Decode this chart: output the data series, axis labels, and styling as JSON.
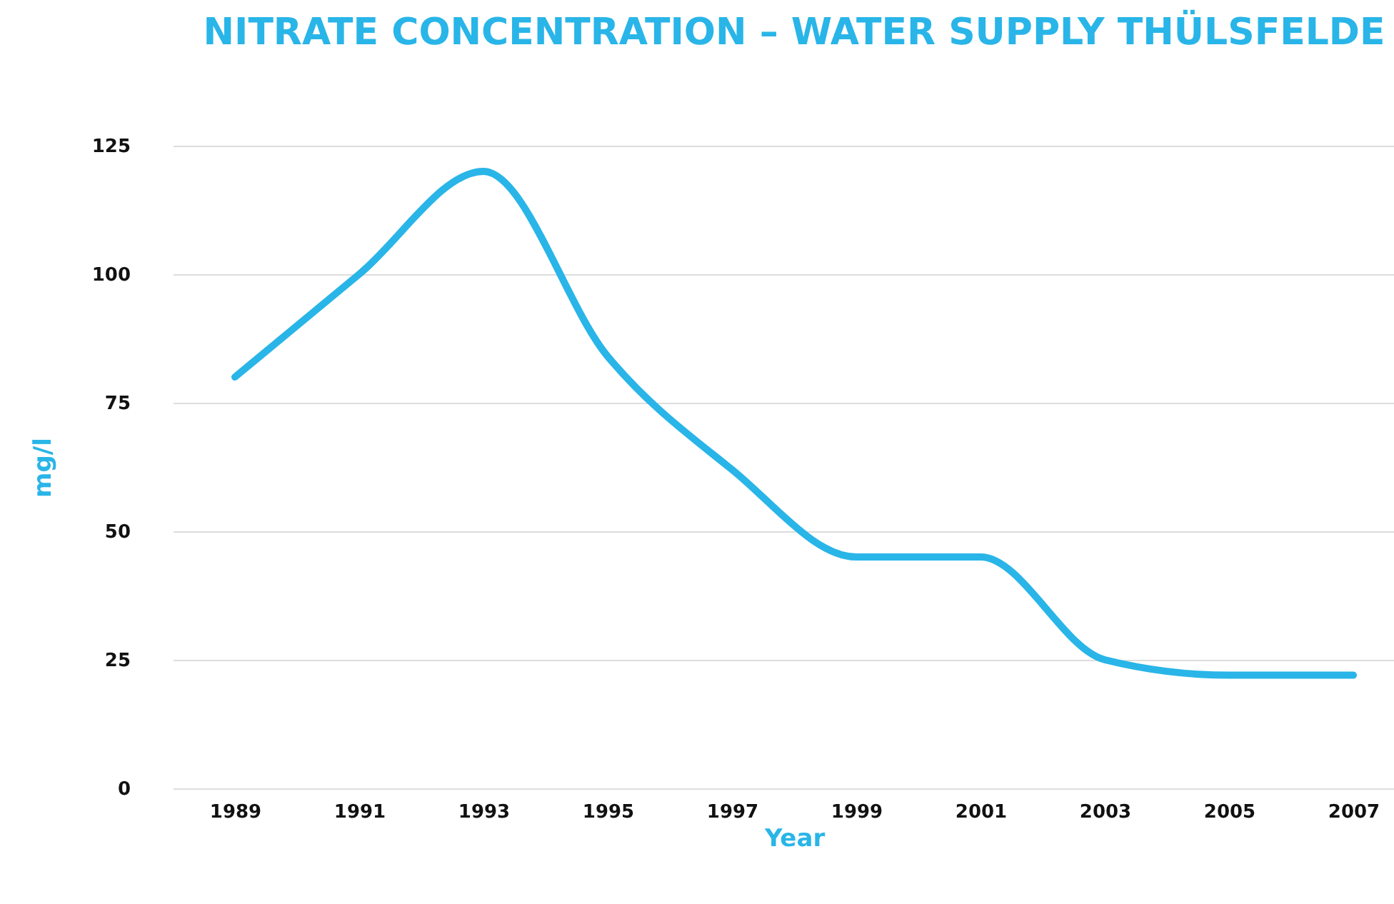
{
  "chart_data": {
    "type": "line",
    "title": "NITRATE CONCENTRATION – WATER SUPPLY THÜLSFELDE",
    "xlabel": "Year",
    "ylabel": "mg/l",
    "categories": [
      "1989",
      "1991",
      "1993",
      "1995",
      "1997",
      "1999",
      "2001",
      "2003",
      "2005",
      "2007"
    ],
    "series": [
      {
        "color": "#29b5e8",
        "values": [
          80,
          100,
          120,
          84,
          62,
          45,
          45,
          25,
          22,
          22
        ]
      }
    ],
    "ylim": [
      0,
      125
    ],
    "yticks": [
      0,
      25,
      50,
      75,
      100,
      125
    ],
    "grid": "y",
    "marker": "none",
    "line_style": "solid"
  }
}
